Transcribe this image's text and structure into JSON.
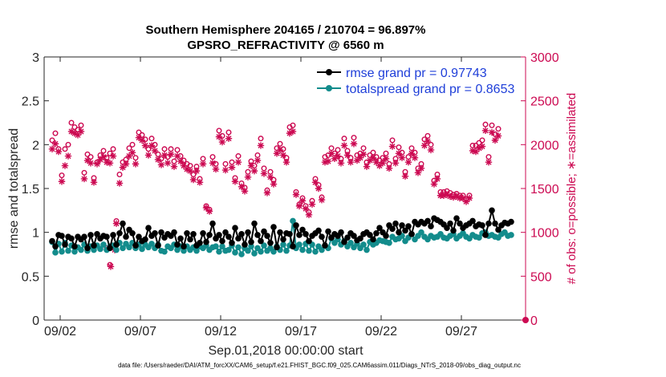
{
  "chart_data": {
    "type": "line",
    "title_line1": "Southern Hemisphere 204165 / 210704 = 96.897%",
    "title_line2": "GPSRO_REFRACTIVITY @ 6560 m",
    "ylabel_left": "rmse and totalspread",
    "ylabel_right": "# of obs: o=possible; ∗=assimilated",
    "xlabel": "Sep.01,2018 00:00:00 start",
    "footnote": "data file: /Users/raeder/DAI/ATM_forcXX/CAM6_setup/f.e21.FHIST_BGC.f09_025.CAM6assim.011/Diags_NTrS_2018-09/obs_diag_output.nc",
    "xlim": [
      0.5,
      30.5
    ],
    "ylim_left": [
      0,
      3
    ],
    "ylim_right": [
      0,
      3000
    ],
    "xticks": [
      {
        "value": 1.5,
        "label": "09/02"
      },
      {
        "value": 6.5,
        "label": "09/07"
      },
      {
        "value": 11.5,
        "label": "09/12"
      },
      {
        "value": 16.5,
        "label": "09/17"
      },
      {
        "value": 21.5,
        "label": "09/22"
      },
      {
        "value": 26.5,
        "label": "09/27"
      }
    ],
    "yticks_left": [
      {
        "value": 0,
        "label": "0"
      },
      {
        "value": 0.5,
        "label": "0.5"
      },
      {
        "value": 1,
        "label": "1"
      },
      {
        "value": 1.5,
        "label": "1.5"
      },
      {
        "value": 2,
        "label": "2"
      },
      {
        "value": 2.5,
        "label": "2.5"
      },
      {
        "value": 3,
        "label": "3"
      }
    ],
    "yticks_right": [
      {
        "value": 0,
        "label": "0"
      },
      {
        "value": 500,
        "label": "500"
      },
      {
        "value": 1000,
        "label": "1000"
      },
      {
        "value": 1500,
        "label": "1500"
      },
      {
        "value": 2000,
        "label": "2000"
      },
      {
        "value": 2500,
        "label": "2500"
      },
      {
        "value": 3000,
        "label": "3000"
      }
    ],
    "legend": [
      {
        "name": "rmse grand pr = 0.97743",
        "color": "#000000"
      },
      {
        "name": "totalspread grand pr = 0.8653",
        "color": "#138c8c"
      }
    ],
    "legend_position": "top-right",
    "colors": {
      "rmse": "#000000",
      "spread": "#138c8c",
      "obs": "#cc0a52",
      "axis": "#262626"
    },
    "series": [
      {
        "name": "rmse",
        "axis": "left",
        "values": [
          0.9,
          0.84,
          0.97,
          0.96,
          0.86,
          0.95,
          0.93,
          0.84,
          0.95,
          0.92,
          0.95,
          0.82,
          0.97,
          0.85,
          0.98,
          0.93,
          0.96,
          0.95,
          0.82,
          0.97,
          0.86,
          0.99,
          1.1,
          0.95,
          1.03,
          0.99,
          0.85,
          0.95,
          0.9,
          0.92,
          1.05,
          0.96,
          0.99,
          0.85,
          1.0,
          0.94,
          0.98,
          0.96,
          1.0,
          0.86,
          0.93,
          0.84,
          0.99,
          0.92,
          0.98,
          0.85,
          0.88,
          0.99,
          0.89,
          0.97,
          1.1,
          0.93,
          0.97,
          0.9,
          1.0,
          0.95,
          0.88,
          1.05,
          0.93,
          0.98,
          0.86,
          1.0,
          0.89,
          1.1,
          0.97,
          0.9,
          1.01,
          0.96,
          0.88,
          1.06,
          0.83,
          1.0,
          0.92,
          0.99,
          0.98,
          0.84,
          1.08,
          0.97,
          1.03,
          0.98,
          0.9,
          0.96,
          0.99,
          1.02,
          0.95,
          0.85,
          1.01,
          0.94,
          0.98,
          0.96,
          1.0,
          0.89,
          0.94,
          0.99,
          0.96,
          0.91,
          0.93,
          0.98,
          1.0,
          0.97,
          0.92,
          0.99,
          1.05,
          1.0,
          0.96,
          1.08,
          1.04,
          1.1,
          1.0,
          1.08,
          1.02,
          1.07,
          0.98,
          1.12,
          1.09,
          1.12,
          1.1,
          1.13,
          1.07,
          1.16,
          1.14,
          1.12,
          1.09,
          1.05,
          1.1,
          1.02,
          1.16,
          1.1,
          1.05,
          1.08,
          1.1,
          1.13,
          1.07,
          1.09,
          1.08,
          0.97,
          1.1,
          1.25,
          1.1,
          1.03,
          1.08,
          1.11,
          1.1,
          1.12
        ]
      },
      {
        "name": "totalspread",
        "axis": "left",
        "values": [
          0.89,
          0.77,
          0.87,
          0.78,
          0.88,
          0.79,
          0.85,
          0.78,
          0.83,
          0.8,
          0.86,
          0.79,
          0.84,
          0.8,
          0.85,
          0.81,
          0.86,
          0.8,
          0.84,
          0.85,
          0.8,
          0.88,
          0.82,
          0.87,
          0.83,
          0.88,
          0.82,
          0.86,
          0.81,
          0.86,
          0.83,
          0.87,
          0.82,
          0.86,
          0.79,
          0.78,
          0.84,
          0.82,
          0.86,
          0.8,
          0.84,
          0.79,
          0.84,
          0.8,
          0.83,
          0.79,
          0.84,
          0.82,
          0.85,
          0.8,
          0.83,
          0.84,
          0.78,
          0.84,
          0.79,
          0.8,
          0.85,
          0.77,
          0.83,
          0.75,
          0.82,
          0.79,
          0.84,
          0.76,
          0.82,
          0.78,
          0.85,
          0.79,
          0.82,
          0.78,
          0.84,
          0.8,
          0.86,
          0.79,
          0.85,
          1.13,
          0.82,
          0.86,
          0.8,
          0.87,
          0.79,
          0.86,
          0.78,
          0.84,
          0.8,
          0.85,
          0.82,
          0.93,
          0.88,
          0.92,
          0.86,
          0.9,
          0.84,
          0.88,
          0.83,
          0.87,
          0.82,
          0.86,
          0.8,
          0.89,
          0.86,
          0.88,
          0.91,
          0.9,
          0.89,
          0.88,
          0.95,
          0.92,
          0.93,
          0.96,
          0.9,
          0.94,
          0.98,
          0.92,
          0.96,
          1.0,
          0.95,
          0.92,
          0.96,
          0.94,
          0.95,
          0.98,
          0.94,
          0.93,
          0.96,
          0.98,
          0.93,
          0.96,
          0.99,
          0.95,
          0.93,
          0.97,
          0.95,
          0.94,
          0.99,
          1.0,
          0.96,
          0.97,
          0.95,
          0.94,
          0.98,
          1.0,
          0.96,
          0.97
        ]
      },
      {
        "name": "obs possible",
        "axis": "right",
        "values": [
          2050,
          2130,
          1950,
          1650,
          1950,
          2000,
          2250,
          2200,
          2170,
          2220,
          1680,
          1890,
          1860,
          1620,
          1800,
          1880,
          1930,
          1850,
          1900,
          1950,
          1130,
          1660,
          1800,
          1830,
          1960,
          2000,
          1850,
          2140,
          2110,
          2060,
          1950,
          2070,
          2000,
          1890,
          1840,
          1950,
          1860,
          1950,
          1810,
          1940,
          1870,
          1820,
          1780,
          1760,
          1660,
          1750,
          1610,
          1840,
          1300,
          1260,
          1860,
          1780,
          2160,
          2100,
          1780,
          2140,
          1800,
          1620,
          1870,
          1560,
          1510,
          1690,
          1810,
          1760,
          1880,
          2070,
          1730,
          1480,
          1690,
          1600,
          1960,
          2010,
          1950,
          1850,
          2200,
          2220,
          1460,
          1320,
          1390,
          1300,
          1230,
          1360,
          1610,
          1540,
          1400,
          1860,
          1880,
          1960,
          1900,
          1940,
          1840,
          2070,
          1930,
          1850,
          2080,
          1880,
          1900,
          1960,
          1800,
          1880,
          1910,
          1860,
          1820,
          1850,
          1900,
          1780,
          2050,
          1840,
          1970,
          1910,
          1690,
          1860,
          1960,
          1910,
          1730,
          1780,
          2060,
          2100,
          2000,
          1590,
          1660,
          1460,
          1460,
          1470,
          1450,
          1430,
          1440,
          1420,
          1420,
          1380,
          1420,
          1990,
          1990,
          2020,
          2050,
          2230,
          1860,
          2220,
          2120,
          2180
        ]
      },
      {
        "name": "obs assimilated",
        "axis": "right",
        "values": [
          1950,
          2010,
          1920,
          1580,
          1760,
          1870,
          2150,
          2130,
          2110,
          2150,
          1610,
          1820,
          1790,
          1570,
          1780,
          1830,
          1860,
          1800,
          1790,
          1870,
          1100,
          1560,
          1740,
          1780,
          1870,
          1910,
          1780,
          2080,
          2050,
          1990,
          1880,
          1990,
          1930,
          1830,
          1770,
          1880,
          1790,
          1890,
          1750,
          1870,
          1810,
          1760,
          1720,
          1700,
          1600,
          1700,
          1570,
          1780,
          1280,
          1240,
          1790,
          1720,
          2090,
          2030,
          1710,
          2070,
          1740,
          1580,
          1800,
          1520,
          1470,
          1630,
          1760,
          1700,
          1820,
          1990,
          1670,
          1450,
          1630,
          1550,
          1900,
          1940,
          1880,
          1800,
          2130,
          2150,
          1430,
          1300,
          1360,
          1270,
          1200,
          1320,
          1570,
          1500,
          1370,
          1800,
          1810,
          1900,
          1840,
          1870,
          1790,
          1990,
          1880,
          1800,
          2010,
          1820,
          1850,
          1890,
          1750,
          1820,
          1850,
          1800,
          1760,
          1790,
          1840,
          1730,
          1980,
          1790,
          1900,
          1850,
          1640,
          1800,
          1900,
          1850,
          1680,
          1730,
          1990,
          2040,
          1940,
          1550,
          1610,
          1420,
          1420,
          1430,
          1410,
          1400,
          1410,
          1390,
          1390,
          1350,
          1390,
          1930,
          1920,
          1960,
          1980,
          2160,
          1800,
          2140,
          2050,
          2100
        ]
      }
    ],
    "extra_points": [
      {
        "name": "outlier possible",
        "axis": "right",
        "x": 4.6,
        "y": 630
      },
      {
        "name": "outlier assimilated",
        "axis": "right",
        "x": 4.65,
        "y": 610
      },
      {
        "name": "outlier possible",
        "axis": "right",
        "x": 4.4,
        "y": 820
      },
      {
        "name": "outlier assimilated",
        "axis": "right",
        "x": 4.9,
        "y": 800
      },
      {
        "name": "final zero",
        "axis": "right",
        "x": 30.5,
        "y": 0
      }
    ]
  }
}
